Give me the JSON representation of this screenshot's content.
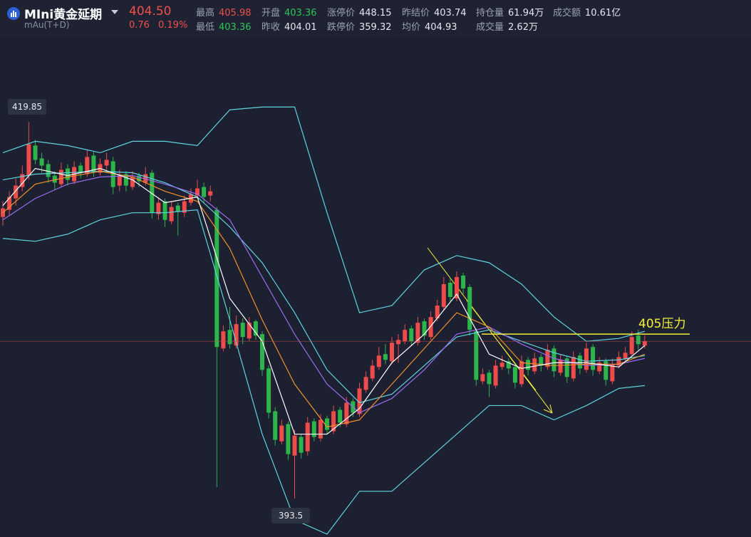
{
  "header": {
    "symbol": "MIni黄金延期",
    "code": "mAu(T+D)",
    "price": "404.50",
    "change": "0.76",
    "change_pct": "0.19%",
    "row1": [
      {
        "label": "最高",
        "value": "405.98",
        "color": "#f0504a"
      },
      {
        "label": "开盘",
        "value": "403.36",
        "color": "#2fc45a"
      },
      {
        "label": "涨停价",
        "value": "448.15",
        "color": "#e6e8ee"
      },
      {
        "label": "昨结价",
        "value": "403.74",
        "color": "#e6e8ee"
      },
      {
        "label": "持仓量",
        "value": "61.94万",
        "color": "#e6e8ee"
      },
      {
        "label": "成交额",
        "value": "10.61亿",
        "color": "#e6e8ee"
      }
    ],
    "row2": [
      {
        "label": "最低",
        "value": "403.36",
        "color": "#2fc45a"
      },
      {
        "label": "昨收",
        "value": "404.01",
        "color": "#e6e8ee"
      },
      {
        "label": "跌停价",
        "value": "359.32",
        "color": "#e6e8ee"
      },
      {
        "label": "均价",
        "value": "404.93",
        "color": "#e6e8ee"
      },
      {
        "label": "成交量",
        "value": "2.62万",
        "color": "#e6e8ee"
      }
    ]
  },
  "chart_data": {
    "type": "candlestick",
    "ylim": [
      390.8,
      424.9
    ],
    "up_color": "#ee4b4b",
    "down_color": "#2db54c",
    "ohlc": [
      [
        413.2,
        414.3,
        412.6,
        413.8
      ],
      [
        413.7,
        415.0,
        413.3,
        414.6
      ],
      [
        414.5,
        415.9,
        414.0,
        415.4
      ],
      [
        415.3,
        416.8,
        415.0,
        416.2
      ],
      [
        416.1,
        419.85,
        415.8,
        418.3
      ],
      [
        418.2,
        418.6,
        416.9,
        417.2
      ],
      [
        417.3,
        417.7,
        416.3,
        416.8
      ],
      [
        416.9,
        417.2,
        415.6,
        416.0
      ],
      [
        416.1,
        416.4,
        415.1,
        415.6
      ],
      [
        415.5,
        417.0,
        415.3,
        416.5
      ],
      [
        416.6,
        416.9,
        415.4,
        415.8
      ],
      [
        415.7,
        417.1,
        415.5,
        416.7
      ],
      [
        416.8,
        417.0,
        415.9,
        416.3
      ],
      [
        416.2,
        417.9,
        416.0,
        417.4
      ],
      [
        417.5,
        417.8,
        416.0,
        416.4
      ],
      [
        416.3,
        417.3,
        416.1,
        416.9
      ],
      [
        416.8,
        417.7,
        416.5,
        417.2
      ],
      [
        417.1,
        417.4,
        414.8,
        415.3
      ],
      [
        415.4,
        416.5,
        415.0,
        416.1
      ],
      [
        416.2,
        416.4,
        415.0,
        415.4
      ],
      [
        415.3,
        416.4,
        415.1,
        416.0
      ],
      [
        416.1,
        416.3,
        415.3,
        415.7
      ],
      [
        415.6,
        416.7,
        415.4,
        416.2
      ],
      [
        416.3,
        416.5,
        413.1,
        413.5
      ],
      [
        413.4,
        414.6,
        413.0,
        414.2
      ],
      [
        414.3,
        414.5,
        412.5,
        413.0
      ],
      [
        412.9,
        414.3,
        412.7,
        413.9
      ],
      [
        414.0,
        414.2,
        411.9,
        413.6
      ],
      [
        413.5,
        414.7,
        413.2,
        414.3
      ],
      [
        414.2,
        415.2,
        414.0,
        414.8
      ],
      [
        414.7,
        415.8,
        414.5,
        415.2
      ],
      [
        415.3,
        415.6,
        414.2,
        414.6
      ],
      [
        414.7,
        415.4,
        414.3,
        415.0
      ],
      [
        413.7,
        413.9,
        394.3,
        404.1
      ],
      [
        404.0,
        405.6,
        403.8,
        405.2
      ],
      [
        405.3,
        406.9,
        404.0,
        404.3
      ],
      [
        404.2,
        406.3,
        404.0,
        405.7
      ],
      [
        405.8,
        406.1,
        404.3,
        404.8
      ],
      [
        404.7,
        406.2,
        404.5,
        405.8
      ],
      [
        405.9,
        406.0,
        404.6,
        404.9
      ],
      [
        405.0,
        405.2,
        402.1,
        402.5
      ],
      [
        402.6,
        402.8,
        399.1,
        399.5
      ],
      [
        399.6,
        399.9,
        397.2,
        397.6
      ],
      [
        397.5,
        399.0,
        397.3,
        398.6
      ],
      [
        398.7,
        398.9,
        396.2,
        396.6
      ],
      [
        396.5,
        398.3,
        393.5,
        397.9
      ],
      [
        397.8,
        398.0,
        396.3,
        396.7
      ],
      [
        396.8,
        399.2,
        396.5,
        398.8
      ],
      [
        398.9,
        399.1,
        397.5,
        397.8
      ],
      [
        397.7,
        399.4,
        397.5,
        399.0
      ],
      [
        399.1,
        399.3,
        398.0,
        398.3
      ],
      [
        398.2,
        400.0,
        398.0,
        399.6
      ],
      [
        399.7,
        399.9,
        398.5,
        398.8
      ],
      [
        398.7,
        400.6,
        398.5,
        400.2
      ],
      [
        400.3,
        400.5,
        399.2,
        399.5
      ],
      [
        399.4,
        401.6,
        399.2,
        401.2
      ],
      [
        401.1,
        402.4,
        400.9,
        402.0
      ],
      [
        401.9,
        403.2,
        401.7,
        402.8
      ],
      [
        402.7,
        404.1,
        402.5,
        403.5
      ],
      [
        403.6,
        404.3,
        402.9,
        403.2
      ],
      [
        403.1,
        404.8,
        402.9,
        404.4
      ],
      [
        404.3,
        405.0,
        403.0,
        404.6
      ],
      [
        404.5,
        405.7,
        404.3,
        405.3
      ],
      [
        405.4,
        405.6,
        404.2,
        404.5
      ],
      [
        404.4,
        406.2,
        404.2,
        405.8
      ],
      [
        405.9,
        406.1,
        404.6,
        404.9
      ],
      [
        404.8,
        406.6,
        404.6,
        406.2
      ],
      [
        406.1,
        407.4,
        405.9,
        407.0
      ],
      [
        406.9,
        409.0,
        406.7,
        408.5
      ],
      [
        408.6,
        408.9,
        407.3,
        407.6
      ],
      [
        407.5,
        409.4,
        407.3,
        409.0
      ],
      [
        409.1,
        409.3,
        407.8,
        408.2
      ],
      [
        408.3,
        408.5,
        404.9,
        405.3
      ],
      [
        405.2,
        405.4,
        401.4,
        401.8
      ],
      [
        401.7,
        402.6,
        401.5,
        402.2
      ],
      [
        402.3,
        402.5,
        400.6,
        401.5
      ],
      [
        401.4,
        403.2,
        401.2,
        402.8
      ],
      [
        402.7,
        403.5,
        402.5,
        403.0
      ],
      [
        403.1,
        403.3,
        402.2,
        402.6
      ],
      [
        402.7,
        402.9,
        401.2,
        401.6
      ],
      [
        401.5,
        403.5,
        401.3,
        403.1
      ],
      [
        403.2,
        403.4,
        402.1,
        402.5
      ],
      [
        402.4,
        403.7,
        402.2,
        403.3
      ],
      [
        403.4,
        403.6,
        402.4,
        402.8
      ],
      [
        402.7,
        404.3,
        402.5,
        403.9
      ],
      [
        404.0,
        404.2,
        402.0,
        402.4
      ],
      [
        402.3,
        403.6,
        402.1,
        403.2
      ],
      [
        403.3,
        403.5,
        401.6,
        402.0
      ],
      [
        401.9,
        403.8,
        401.7,
        403.4
      ],
      [
        403.5,
        403.7,
        402.2,
        402.6
      ],
      [
        402.5,
        404.4,
        402.3,
        404.0
      ],
      [
        404.1,
        404.3,
        402.1,
        402.5
      ],
      [
        402.4,
        403.4,
        402.2,
        403.0
      ],
      [
        403.1,
        403.3,
        401.4,
        401.8
      ],
      [
        401.7,
        403.3,
        401.5,
        402.9
      ],
      [
        402.8,
        403.8,
        402.6,
        403.4
      ],
      [
        403.3,
        404.1,
        403.1,
        403.7
      ],
      [
        403.6,
        405.2,
        403.4,
        404.8
      ],
      [
        404.9,
        405.3,
        403.9,
        404.3
      ],
      [
        404.2,
        404.9,
        404.0,
        404.5
      ]
    ],
    "lines": [
      {
        "color": "#5fd3e0",
        "x": [
          0,
          5,
          10,
          15,
          20,
          25,
          30,
          35,
          40,
          45,
          50,
          55,
          60,
          65,
          70,
          75,
          80,
          85,
          90,
          95,
          99
        ],
        "values": [
          417.7,
          418.5,
          418.2,
          417.7,
          418.5,
          418.5,
          418.2,
          420.7,
          420.9,
          420.9,
          413.5,
          406.5,
          407.0,
          409.5,
          410.5,
          410.0,
          408.5,
          406.2,
          404.5,
          404.7,
          405.2
        ]
      },
      {
        "color": "#5fd3e0",
        "x": [
          0,
          5,
          10,
          15,
          20,
          25,
          30,
          35,
          40,
          45,
          50,
          55,
          60,
          65,
          70,
          75,
          80,
          85,
          90,
          95,
          99
        ],
        "values": [
          415.8,
          416.2,
          416.3,
          416.4,
          416.3,
          415.6,
          414.6,
          412.5,
          410.0,
          406.5,
          402.5,
          400.2,
          400.8,
          402.8,
          404.8,
          405.3,
          404.5,
          403.7,
          403.1,
          403.2,
          403.5
        ]
      },
      {
        "color": "#5fd3e0",
        "x": [
          0,
          5,
          10,
          15,
          20,
          25,
          30,
          35,
          40,
          45,
          50,
          55,
          60,
          65,
          70,
          75,
          80,
          85,
          90,
          95,
          99
        ],
        "values": [
          411.7,
          411.5,
          412.0,
          413.0,
          413.5,
          413.5,
          413.7,
          406.0,
          398.0,
          392.0,
          391.0,
          394.0,
          394.0,
          396.0,
          398.0,
          400.0,
          400.0,
          399.0,
          400.0,
          401.2,
          401.4
        ]
      },
      {
        "color": "#9b6cf0",
        "x": [
          0,
          5,
          10,
          15,
          20,
          25,
          30,
          35,
          40,
          45,
          50,
          55,
          60,
          65,
          70,
          75,
          80,
          85,
          90,
          95,
          99
        ],
        "values": [
          413.0,
          414.5,
          415.5,
          416.0,
          416.1,
          415.5,
          414.8,
          413.0,
          409.0,
          405.0,
          401.5,
          399.5,
          400.5,
          402.5,
          405.0,
          405.5,
          404.3,
          403.3,
          402.8,
          402.9,
          403.3
        ]
      },
      {
        "color": "#f0902a",
        "x": [
          0,
          5,
          10,
          15,
          20,
          25,
          30,
          35,
          40,
          45,
          50,
          55,
          60,
          65,
          70,
          75,
          80,
          85,
          90,
          95,
          99
        ],
        "values": [
          413.5,
          415.5,
          416.0,
          416.4,
          416.0,
          415.0,
          414.3,
          411.0,
          406.0,
          401.5,
          398.5,
          399.0,
          401.5,
          404.0,
          406.5,
          405.5,
          403.0,
          402.8,
          402.9,
          402.9,
          403.6
        ]
      },
      {
        "color": "#ffffff",
        "x": [
          0,
          5,
          10,
          15,
          20,
          25,
          30,
          35,
          40,
          45,
          50,
          55,
          60,
          65,
          70,
          75,
          80,
          85,
          90,
          95,
          99
        ],
        "values": [
          414.0,
          416.6,
          416.1,
          416.6,
          415.8,
          414.2,
          414.6,
          407.5,
          404.5,
          398.0,
          398.0,
          399.8,
          403.0,
          405.0,
          407.8,
          403.6,
          402.6,
          403.0,
          403.0,
          402.7,
          404.2
        ]
      }
    ],
    "resistance": {
      "value": 405,
      "label": "405压力",
      "color": "#f5f03a"
    }
  }
}
